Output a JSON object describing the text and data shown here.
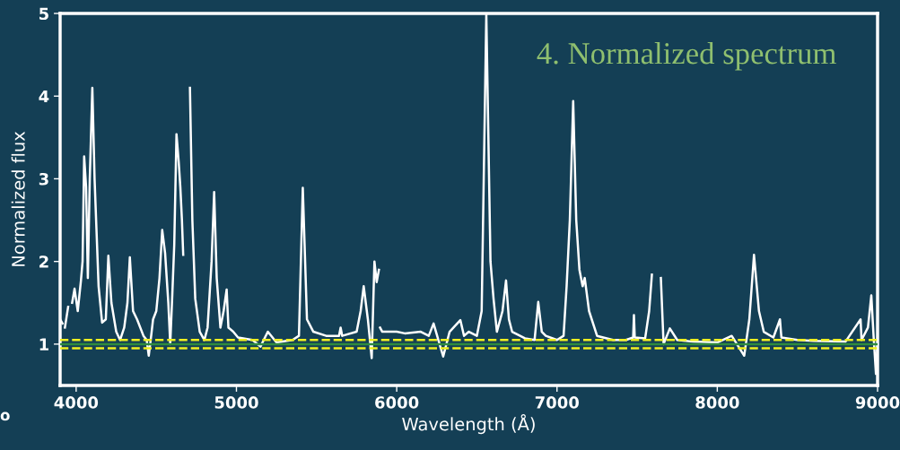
{
  "chart_data": {
    "type": "line",
    "title": "4. Normalized spectrum",
    "xlabel": "Wavelength (Å)",
    "ylabel": "Normalized flux",
    "x": [
      3900,
      3915,
      3922,
      3930,
      3950,
      3966,
      3975,
      3990,
      4010,
      4030,
      4040,
      4050,
      4062,
      4073,
      4085,
      4101,
      4115,
      4140,
      4162,
      4185,
      4201,
      4220,
      4250,
      4274,
      4300,
      4320,
      4335,
      4355,
      4380,
      4420,
      4440,
      4453,
      4465,
      4480,
      4500,
      4520,
      4537,
      4555,
      4575,
      4587,
      4600,
      4612,
      4626,
      4640,
      4650,
      4660,
      4668,
      4675,
      4705,
      4710,
      4725,
      4743,
      4771,
      4800,
      4820,
      4845,
      4861,
      4877,
      4900,
      4920,
      4939,
      4950,
      4980,
      5010,
      5100,
      5150,
      5196,
      5250,
      5350,
      5390,
      5414,
      5440,
      5480,
      5560,
      5640,
      5650,
      5660,
      5750,
      5775,
      5794,
      5820,
      5844,
      5861,
      5875,
      5889,
      5893,
      5896,
      5910,
      6000,
      6050,
      6150,
      6200,
      6230,
      6260,
      6290,
      6330,
      6397,
      6420,
      6450,
      6500,
      6530,
      6559,
      6585,
      6604,
      6625,
      6660,
      6682,
      6700,
      6720,
      6800,
      6860,
      6883,
      6905,
      6930,
      7000,
      7041,
      7060,
      7080,
      7101,
      7120,
      7140,
      7160,
      7173,
      7200,
      7250,
      7350,
      7430,
      7475,
      7480,
      7485,
      7550,
      7575,
      7592,
      7598,
      7626,
      7648,
      7665,
      7704,
      7750,
      7850,
      8000,
      8090,
      8168,
      8200,
      8229,
      8260,
      8290,
      8350,
      8391,
      8400,
      8500,
      8600,
      8800,
      8894,
      8900,
      8940,
      8961,
      8975,
      8990,
      9000
    ],
    "series": [
      {
        "color": "#ffffff",
        "values": [
          1.3,
          1.25,
          null,
          1.2,
          1.45,
          null,
          1.5,
          1.67,
          1.4,
          1.77,
          2.0,
          3.27,
          2.9,
          1.8,
          3.0,
          4.1,
          3.0,
          1.7,
          1.26,
          1.3,
          2.07,
          1.5,
          1.15,
          1.05,
          1.2,
          1.5,
          2.05,
          1.4,
          1.3,
          1.1,
          1.05,
          0.86,
          1.05,
          1.3,
          1.4,
          1.8,
          2.38,
          2.1,
          1.5,
          1.0,
          1.6,
          2.2,
          3.54,
          3.2,
          2.9,
          2.5,
          2.08,
          null,
          null,
          4.1,
          2.5,
          1.55,
          1.15,
          1.05,
          1.2,
          2.0,
          2.84,
          1.8,
          1.2,
          1.4,
          1.66,
          1.2,
          1.15,
          1.08,
          1.05,
          0.97,
          1.15,
          1.02,
          1.05,
          1.1,
          2.89,
          1.3,
          1.15,
          1.1,
          1.1,
          1.2,
          1.1,
          1.15,
          1.4,
          1.7,
          1.3,
          0.83,
          2.0,
          1.75,
          1.9,
          null,
          1.2,
          1.15,
          1.15,
          1.13,
          1.15,
          1.1,
          1.25,
          1.05,
          0.85,
          1.15,
          1.29,
          1.1,
          1.15,
          1.1,
          1.4,
          4.99,
          2.0,
          1.55,
          1.15,
          1.4,
          1.77,
          1.3,
          1.15,
          1.07,
          1.05,
          1.51,
          1.15,
          1.1,
          1.05,
          1.1,
          1.7,
          2.5,
          3.94,
          2.5,
          1.9,
          1.7,
          1.8,
          1.4,
          1.1,
          1.05,
          1.05,
          1.08,
          1.35,
          1.08,
          1.07,
          1.4,
          1.84,
          null,
          null,
          1.8,
          1.0,
          1.19,
          1.05,
          1.03,
          1.02,
          1.1,
          0.86,
          1.3,
          2.08,
          1.4,
          1.15,
          1.08,
          1.3,
          1.08,
          1.05,
          1.04,
          1.03,
          1.3,
          1.05,
          1.2,
          1.59,
          1.1,
          0.64,
          1.0
        ]
      }
    ],
    "xlim": [
      3900,
      9000
    ],
    "ylim": [
      0.5,
      5
    ],
    "xticks": [
      4000,
      5000,
      6000,
      7000,
      8000,
      9000
    ],
    "yticks": [
      1,
      2,
      3,
      4,
      5
    ],
    "ref_lines": [
      {
        "axis": "y",
        "value": 1,
        "color": "#2e8b3e",
        "line_style": "solid"
      },
      {
        "axis": "y",
        "value": 1.05,
        "color": "#f0f020",
        "line_style": "dashed"
      },
      {
        "axis": "y",
        "value": 0.95,
        "color": "#f0f020",
        "line_style": "dashed"
      }
    ],
    "annotations": [
      "o"
    ],
    "grid": false,
    "legend": false,
    "marker": "none",
    "line_style": "solid"
  }
}
